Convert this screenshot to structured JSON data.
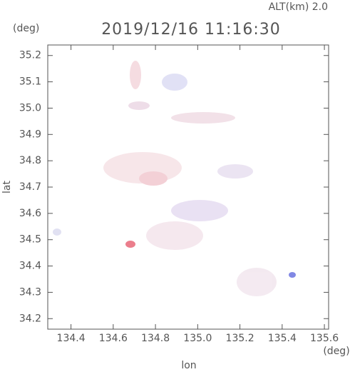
{
  "chart_data": {
    "type": "map",
    "title": "2019/12/16 11:16:30",
    "subtitle": "ALT(km) 2.0",
    "x_label": "lon",
    "y_label": "lat",
    "x_unit": "(deg)",
    "y_unit": "(deg)",
    "xlim": [
      134.29,
      135.62
    ],
    "ylim": [
      34.16,
      35.24
    ],
    "xticks": [
      134.4,
      134.6,
      134.8,
      {
        "value": 135,
        "label": "135.0"
      },
      135.2,
      135.4,
      135.6
    ],
    "yticks": [
      34.2,
      34.3,
      34.4,
      34.5,
      34.6,
      34.7,
      34.8,
      34.9,
      {
        "value": 35,
        "label": "35.0"
      },
      35.1,
      35.2
    ]
  }
}
